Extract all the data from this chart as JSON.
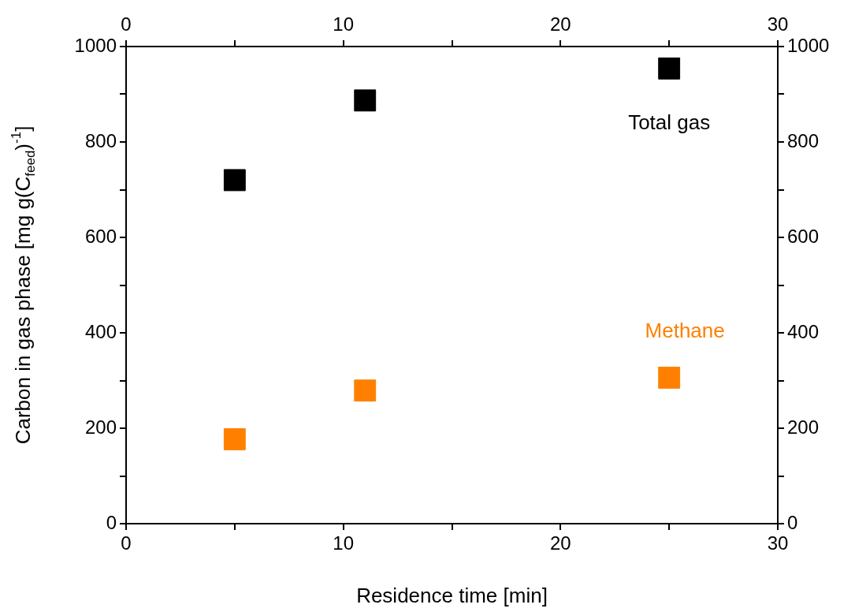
{
  "chart_data": {
    "type": "scatter",
    "xlabel": "Residence time [min]",
    "ylabel": "Carbon in gas phase [mg g(C$_{feed}$)$^{-1}$]",
    "x": [
      5,
      11,
      25
    ],
    "series": [
      {
        "name": "Total gas",
        "color": "#000000",
        "values": [
          720,
          887,
          954
        ]
      },
      {
        "name": "Methane",
        "color": "#ff8000",
        "values": [
          177,
          279,
          306
        ]
      }
    ],
    "xlim": [
      0,
      30
    ],
    "xticks": [
      0,
      {
        "value": 5,
        "label": null
      },
      10,
      {
        "value": 15,
        "label": null
      },
      20,
      {
        "value": 25,
        "label": null
      },
      30
    ],
    "x2lim": [
      0,
      30
    ],
    "x2ticks": [
      0,
      {
        "value": 5,
        "label": null
      },
      10,
      {
        "value": 15,
        "label": null
      },
      20,
      {
        "value": 25,
        "label": null
      },
      30
    ],
    "ylim": [
      0,
      1000
    ],
    "yticks": [
      0,
      {
        "value": 100,
        "label": null
      },
      200,
      {
        "value": 300,
        "label": null
      },
      400,
      {
        "value": 500,
        "label": null
      },
      600,
      {
        "value": 700,
        "label": null
      },
      800,
      {
        "value": 900,
        "label": null
      },
      1000
    ],
    "y2lim": [
      0,
      1000
    ],
    "y2ticks": [
      0,
      {
        "value": 100,
        "label": null
      },
      200,
      {
        "value": 300,
        "label": null
      },
      400,
      {
        "value": 500,
        "label": null
      },
      600,
      {
        "value": 700,
        "label": null
      },
      800,
      {
        "value": 900,
        "label": null
      },
      1000
    ],
    "marker": "square",
    "grid": false,
    "legend": false
  }
}
